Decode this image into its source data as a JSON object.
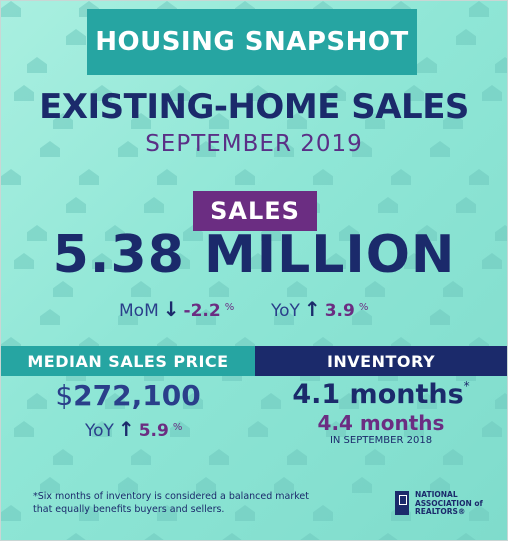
{
  "header": {
    "snapshot_label": "HOUSING SNAPSHOT"
  },
  "title": {
    "main": "EXISTING-HOME SALES",
    "date": "SEPTEMBER 2019"
  },
  "sales": {
    "tag": "SALES",
    "value": "5.38 MILLION",
    "mom": {
      "label": "MoM",
      "arrow": "↓",
      "value": "-2.2",
      "unit": "%"
    },
    "yoy": {
      "label": "YoY",
      "arrow": "↑",
      "value": "3.9",
      "unit": "%"
    }
  },
  "median_price": {
    "header": "MEDIAN SALES PRICE",
    "currency": "$",
    "value": "272,100",
    "yoy_label": "YoY",
    "yoy_arrow": "↑",
    "yoy_value": "5.9",
    "yoy_unit": "%"
  },
  "inventory": {
    "header": "INVENTORY",
    "current": "4.1 months",
    "asterisk": "*",
    "prior": "4.4 months",
    "prior_note": "IN SEPTEMBER 2018"
  },
  "footnote": "*Six months of inventory is considered a balanced market that equally benefits buyers and sellers.",
  "logo": {
    "line1": "NATIONAL",
    "line2": "ASSOCIATION of",
    "line3": "REALTORS®"
  },
  "colors": {
    "navy": "#1b2a6b",
    "purple": "#6b2d82",
    "teal": "#26a5a2",
    "background": "#8fe6d6"
  }
}
